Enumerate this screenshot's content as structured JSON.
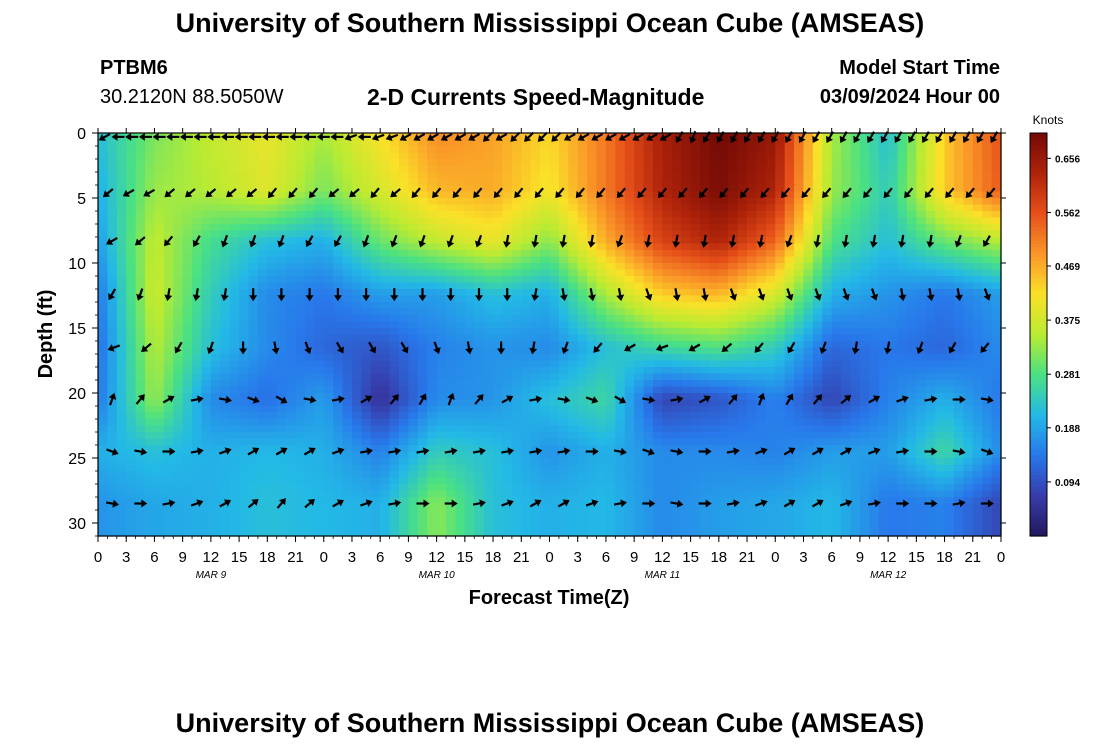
{
  "header": {
    "title": "University of Southern Mississippi Ocean Cube (AMSEAS)",
    "station_id": "PTBM6",
    "station_coords": "30.2120N  88.5050W",
    "plot_title": "2-D Currents Speed-Magnitude",
    "model_start_label": "Model Start Time",
    "model_start_value": "03/09/2024 Hour 00"
  },
  "footer": {
    "title": "University of Southern Mississippi Ocean Cube (AMSEAS)"
  },
  "chart_data": {
    "type": "heatmap",
    "title": "2-D Currents Speed-Magnitude",
    "xlabel": "Forecast Time(Z)",
    "ylabel": "Depth (ft)",
    "x_range": [
      0,
      96
    ],
    "y_range": [
      0,
      31
    ],
    "x_ticks": [
      "0",
      "3",
      "6",
      "9",
      "12",
      "15",
      "18",
      "21",
      "0",
      "3",
      "6",
      "9",
      "12",
      "15",
      "18",
      "21",
      "0",
      "3",
      "6",
      "9",
      "12",
      "15",
      "18",
      "21",
      "0",
      "3",
      "6",
      "9",
      "12",
      "15",
      "18",
      "21",
      "0"
    ],
    "day_labels": [
      {
        "label": "MAR 9",
        "hour": 12
      },
      {
        "label": "MAR 10",
        "hour": 36
      },
      {
        "label": "MAR 11",
        "hour": 60
      },
      {
        "label": "MAR 12",
        "hour": 84
      }
    ],
    "y_ticks": [
      0,
      5,
      10,
      15,
      20,
      25,
      30
    ],
    "colorbar": {
      "label": "Knots",
      "min": 0.0,
      "max": 0.7,
      "ticks": [
        "0.656",
        "0.562",
        "0.469",
        "0.375",
        "0.281",
        "0.188",
        "0.094"
      ],
      "tick_values": [
        0.656,
        0.562,
        0.469,
        0.375,
        0.281,
        0.188,
        0.094
      ]
    },
    "depths": [
      0,
      4.4,
      8.3,
      12.4,
      16.5,
      20.5,
      24.5,
      28.5
    ],
    "time_hours": [
      0,
      6,
      12,
      18,
      24,
      30,
      36,
      42,
      48,
      54,
      60,
      66,
      72,
      78,
      84,
      90,
      96
    ],
    "speed_knots": [
      [
        0.22,
        0.31,
        0.36,
        0.4,
        0.34,
        0.42,
        0.5,
        0.48,
        0.43,
        0.52,
        0.64,
        0.7,
        0.66,
        0.34,
        0.22,
        0.44,
        0.56
      ],
      [
        0.2,
        0.33,
        0.35,
        0.39,
        0.31,
        0.38,
        0.46,
        0.47,
        0.41,
        0.52,
        0.63,
        0.69,
        0.63,
        0.33,
        0.24,
        0.44,
        0.55
      ],
      [
        0.18,
        0.36,
        0.27,
        0.22,
        0.2,
        0.3,
        0.36,
        0.4,
        0.32,
        0.47,
        0.58,
        0.63,
        0.54,
        0.28,
        0.22,
        0.3,
        0.35
      ],
      [
        0.14,
        0.37,
        0.24,
        0.16,
        0.14,
        0.18,
        0.18,
        0.22,
        0.2,
        0.34,
        0.44,
        0.46,
        0.38,
        0.2,
        0.17,
        0.14,
        0.18
      ],
      [
        0.13,
        0.35,
        0.22,
        0.16,
        0.12,
        0.1,
        0.15,
        0.17,
        0.16,
        0.22,
        0.26,
        0.28,
        0.24,
        0.12,
        0.14,
        0.12,
        0.16
      ],
      [
        0.14,
        0.33,
        0.16,
        0.13,
        0.18,
        0.05,
        0.16,
        0.17,
        0.22,
        0.26,
        0.08,
        0.1,
        0.15,
        0.08,
        0.15,
        0.2,
        0.14
      ],
      [
        0.2,
        0.22,
        0.2,
        0.21,
        0.2,
        0.15,
        0.24,
        0.22,
        0.17,
        0.2,
        0.16,
        0.16,
        0.15,
        0.18,
        0.18,
        0.26,
        0.16
      ],
      [
        0.17,
        0.19,
        0.2,
        0.22,
        0.21,
        0.2,
        0.32,
        0.22,
        0.2,
        0.21,
        0.16,
        0.18,
        0.19,
        0.21,
        0.14,
        0.15,
        0.08
      ]
    ],
    "vector_rows": [
      {
        "depth": 0.3,
        "dirs_deg": [
          240,
          270,
          270,
          270,
          270,
          270,
          270,
          270,
          270,
          270,
          270,
          270,
          270,
          270,
          270,
          270,
          270,
          270,
          250,
          270,
          250,
          250,
          240,
          240,
          240,
          240,
          240,
          240,
          225,
          240,
          225,
          225,
          225,
          225,
          240,
          240,
          240,
          240,
          240,
          240,
          240,
          240,
          210,
          200,
          210,
          210,
          210,
          210,
          210,
          210,
          210,
          210,
          210,
          210,
          210,
          210,
          210,
          210,
          210,
          210,
          210,
          210,
          210,
          210,
          210,
          210
        ]
      },
      {
        "depth": 4.6,
        "dirs_deg": [
          230,
          240,
          240,
          230,
          230,
          230,
          230,
          230,
          220,
          220,
          220,
          230,
          230,
          220,
          230,
          220,
          220,
          220,
          220,
          220,
          220,
          220,
          220,
          220,
          220,
          220,
          220,
          220,
          220,
          220,
          220,
          220,
          220,
          220,
          220,
          220,
          220,
          220,
          220,
          220,
          220,
          220,
          220,
          220
        ]
      },
      {
        "depth": 8.3,
        "dirs_deg": [
          240,
          230,
          220,
          210,
          200,
          200,
          200,
          210,
          210,
          200,
          200,
          200,
          200,
          200,
          190,
          190,
          190,
          190,
          200,
          190,
          190,
          190,
          190,
          190,
          200,
          190,
          190,
          190,
          190,
          190,
          200,
          210
        ]
      },
      {
        "depth": 12.4,
        "dirs_deg": [
          210,
          200,
          190,
          190,
          190,
          180,
          180,
          180,
          180,
          180,
          180,
          180,
          180,
          180,
          180,
          190,
          170,
          170,
          170,
          160,
          170,
          170,
          160,
          160,
          160,
          160,
          160,
          160,
          170,
          170,
          170,
          160
        ]
      },
      {
        "depth": 16.5,
        "dirs_deg": [
          250,
          230,
          210,
          200,
          180,
          170,
          160,
          150,
          150,
          150,
          160,
          170,
          180,
          190,
          200,
          220,
          240,
          250,
          240,
          230,
          220,
          210,
          200,
          190,
          190,
          200,
          210,
          220
        ]
      },
      {
        "depth": 20.5,
        "dirs_deg": [
          20,
          40,
          60,
          80,
          100,
          110,
          120,
          100,
          80,
          60,
          40,
          30,
          20,
          40,
          60,
          80,
          100,
          110,
          120,
          100,
          80,
          60,
          40,
          20,
          30,
          40,
          50,
          60,
          70,
          80,
          90,
          100
        ]
      },
      {
        "depth": 24.5,
        "dirs_deg": [
          110,
          100,
          90,
          80,
          70,
          60,
          60,
          60,
          70,
          80,
          80,
          80,
          80,
          80,
          80,
          80,
          80,
          90,
          100,
          110,
          100,
          90,
          80,
          70,
          60,
          60,
          60,
          70,
          80,
          90,
          100,
          110
        ]
      },
      {
        "depth": 28.5,
        "dirs_deg": [
          100,
          90,
          80,
          70,
          60,
          50,
          40,
          50,
          60,
          70,
          80,
          90,
          90,
          80,
          70,
          60,
          60,
          70,
          80,
          90,
          100,
          90,
          80,
          70,
          60,
          60,
          70,
          80,
          90,
          90,
          80,
          90
        ]
      }
    ]
  }
}
